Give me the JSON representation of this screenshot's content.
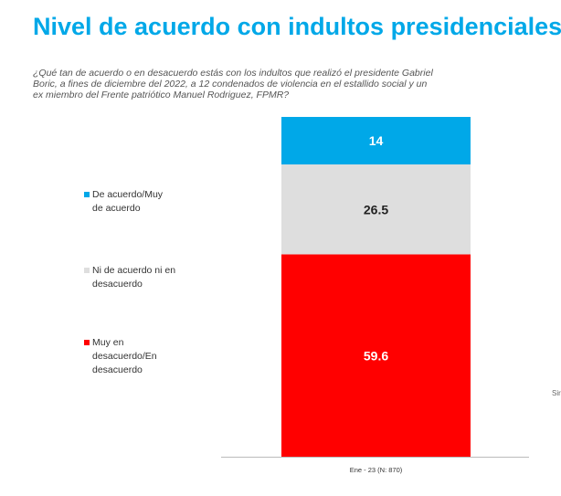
{
  "title": "Nivel de acuerdo con indultos presidenciales",
  "question": "¿Qué tan de acuerdo o en desacuerdo estás con los indultos que realizó el presidente Gabriel Boric, a fines de diciembre del 2022, a 12 condenados de violencia en el estallido social y un ex miembro del Frente patriótico Manuel Rodriguez, FPMR?",
  "edge_text": "Sir",
  "colors": {
    "title": "#00a8e8",
    "de_acuerdo": "#00a8e8",
    "ni_ni": "#dedede",
    "desacuerdo": "#ff0000"
  },
  "chart_data": {
    "type": "bar",
    "stacked": true,
    "categories": [
      "Ene - 23 (N: 870)"
    ],
    "series": [
      {
        "name": "Muy en desacuerdo/En desacuerdo",
        "values": [
          59.6
        ],
        "color": "#ff0000",
        "label_color": "#ffffff",
        "label": "59.6"
      },
      {
        "name": "Ni de acuerdo ni en desacuerdo",
        "values": [
          26.5
        ],
        "color": "#dedede",
        "label_color": "#222222",
        "label": "26.5"
      },
      {
        "name": "De acuerdo/Muy de acuerdo",
        "values": [
          14
        ],
        "color": "#00a8e8",
        "label_color": "#ffffff",
        "label": "14"
      }
    ],
    "legend": [
      {
        "lines": [
          "De acuerdo/Muy",
          "de acuerdo"
        ],
        "color": "#00a8e8"
      },
      {
        "lines": [
          "Ni de acuerdo ni en",
          "desacuerdo"
        ],
        "color": "#dedede"
      },
      {
        "lines": [
          "Muy en",
          "desacuerdo/En",
          "desacuerdo"
        ],
        "color": "#ff0000"
      }
    ],
    "legend_position": "left",
    "ylim": [
      0,
      100.1
    ],
    "grid": false
  }
}
